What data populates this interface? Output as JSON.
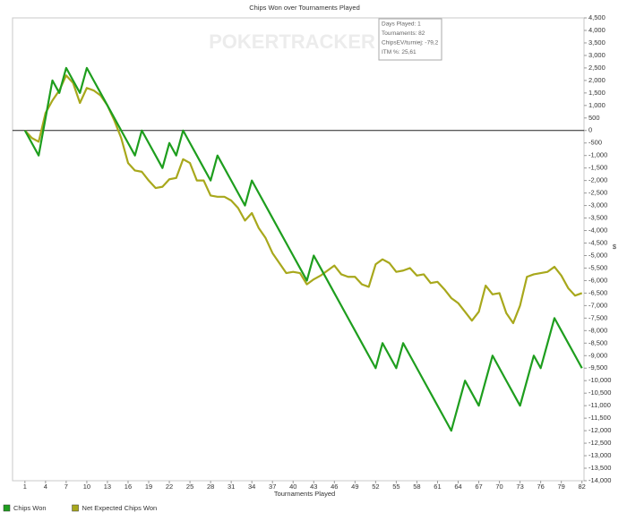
{
  "chart_data": {
    "type": "line",
    "title": "Chips Won over Tournaments Played",
    "x_label": "Tournaments Played",
    "y_label": "$",
    "watermark": "POKERTRACKER",
    "tooltip": [
      "Days Played: 1",
      "Tournaments: 82",
      "ChipsEV/turniej: -79,2",
      "ITM %: 25,61"
    ],
    "x": [
      1,
      2,
      3,
      4,
      5,
      6,
      7,
      8,
      9,
      10,
      11,
      12,
      13,
      14,
      15,
      16,
      17,
      18,
      19,
      20,
      21,
      22,
      23,
      24,
      25,
      26,
      27,
      28,
      29,
      30,
      31,
      32,
      33,
      34,
      35,
      36,
      37,
      38,
      39,
      40,
      41,
      42,
      43,
      44,
      45,
      46,
      47,
      48,
      49,
      50,
      51,
      52,
      53,
      54,
      55,
      56,
      57,
      58,
      59,
      60,
      61,
      62,
      63,
      64,
      65,
      66,
      67,
      68,
      69,
      70,
      71,
      72,
      73,
      74,
      75,
      76,
      77,
      78,
      79,
      80,
      81,
      82
    ],
    "series": [
      {
        "name": "Chips Won",
        "color": "#1e9e1e",
        "values": [
          0,
          -500,
          -1000,
          500,
          2000,
          1500,
          2500,
          2000,
          1500,
          2500,
          2000,
          1500,
          1000,
          500,
          0,
          -500,
          -1000,
          0,
          -500,
          -1000,
          -1500,
          -500,
          -1000,
          0,
          -500,
          -1000,
          -1500,
          -2000,
          -1000,
          -1500,
          -2000,
          -2500,
          -3000,
          -2000,
          -2500,
          -3000,
          -3500,
          -4000,
          -4500,
          -5000,
          -5500,
          -6000,
          -5000,
          -5500,
          -6000,
          -6500,
          -7000,
          -7500,
          -8000,
          -8500,
          -9000,
          -9500,
          -8500,
          -9000,
          -9500,
          -8500,
          -9000,
          -9500,
          -10000,
          -10500,
          -11000,
          -11500,
          -12000,
          -11000,
          -10000,
          -10500,
          -11000,
          -10000,
          -9000,
          -9500,
          -10000,
          -10500,
          -11000,
          -10000,
          -9000,
          -9500,
          -8500,
          -7500,
          -8000,
          -8500,
          -9000,
          -9500
        ]
      },
      {
        "name": "Net Expected Chips Won",
        "color": "#a8a81c",
        "values": [
          0,
          -300,
          -450,
          700,
          1200,
          1600,
          2200,
          1900,
          1100,
          1700,
          1600,
          1400,
          1000,
          400,
          -300,
          -1300,
          -1600,
          -1650,
          -2000,
          -2300,
          -2250,
          -1950,
          -1900,
          -1150,
          -1300,
          -2000,
          -2000,
          -2600,
          -2650,
          -2650,
          -2800,
          -3100,
          -3600,
          -3300,
          -3900,
          -4300,
          -4900,
          -5300,
          -5700,
          -5650,
          -5700,
          -6150,
          -5950,
          -5800,
          -5600,
          -5400,
          -5750,
          -5850,
          -5850,
          -6150,
          -6250,
          -5350,
          -5150,
          -5300,
          -5650,
          -5600,
          -5500,
          -5800,
          -5750,
          -6100,
          -6050,
          -6350,
          -6700,
          -6900,
          -7250,
          -7600,
          -7250,
          -6200,
          -6550,
          -6500,
          -7300,
          -7700,
          -7000,
          -5850,
          -5750,
          -5700,
          -5650,
          -5450,
          -5800,
          -6300,
          -6600,
          -6500
        ]
      }
    ],
    "xlim": [
      -0.8,
      82.3
    ],
    "xticks": [
      1,
      4,
      7,
      10,
      13,
      16,
      19,
      22,
      25,
      28,
      31,
      34,
      37,
      40,
      43,
      46,
      49,
      52,
      55,
      58,
      61,
      64,
      67,
      70,
      73,
      76,
      79,
      82
    ],
    "ylim": [
      -14000,
      4500
    ],
    "yticks": [
      {
        "value": 4500,
        "label": "4,500"
      },
      {
        "value": 4000,
        "label": "4,000"
      },
      {
        "value": 3500,
        "label": "3,500"
      },
      {
        "value": 3000,
        "label": "3,000"
      },
      {
        "value": 2500,
        "label": "2,500"
      },
      {
        "value": 2000,
        "label": "2,000"
      },
      {
        "value": 1500,
        "label": "1,500"
      },
      {
        "value": 1000,
        "label": "1,000"
      },
      500,
      0,
      -500,
      {
        "value": -1000,
        "label": "-1,000"
      },
      {
        "value": -1500,
        "label": "-1,500"
      },
      {
        "value": -2000,
        "label": "-2,000"
      },
      {
        "value": -2500,
        "label": "-2,500"
      },
      {
        "value": -3000,
        "label": "-3,000"
      },
      {
        "value": -3500,
        "label": "-3,500"
      },
      {
        "value": -4000,
        "label": "-4,000"
      },
      {
        "value": -4500,
        "label": "-4,500"
      },
      {
        "value": -5000,
        "label": "-5,000"
      },
      {
        "value": -5500,
        "label": "-5,500"
      },
      {
        "value": -6000,
        "label": "-6,000"
      },
      {
        "value": -6500,
        "label": "-6,500"
      },
      {
        "value": -7000,
        "label": "-7,000"
      },
      {
        "value": -7500,
        "label": "-7,500"
      },
      {
        "value": -8000,
        "label": "-8,000"
      },
      {
        "value": -8500,
        "label": "-8,500"
      },
      {
        "value": -9000,
        "label": "-9,000"
      },
      {
        "value": -9500,
        "label": "-9,500"
      },
      {
        "value": -10000,
        "label": "-10,000"
      },
      {
        "value": -10500,
        "label": "-10,500"
      },
      {
        "value": -11000,
        "label": "-11,000"
      },
      {
        "value": -11500,
        "label": "-11,500"
      },
      {
        "value": -12000,
        "label": "-12,000"
      },
      {
        "value": -12500,
        "label": "-12,500"
      },
      {
        "value": -13000,
        "label": "-13,000"
      },
      {
        "value": -13500,
        "label": "-13,500"
      },
      {
        "value": -14000,
        "label": "-14,000"
      }
    ],
    "grid": false,
    "zero_line": true
  }
}
